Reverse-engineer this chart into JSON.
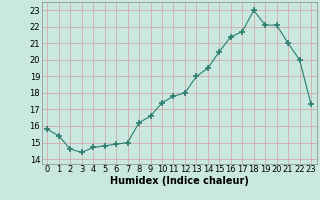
{
  "x": [
    0,
    1,
    2,
    3,
    4,
    5,
    6,
    7,
    8,
    9,
    10,
    11,
    12,
    13,
    14,
    15,
    16,
    17,
    18,
    19,
    20,
    21,
    22,
    23
  ],
  "y": [
    15.8,
    15.4,
    14.6,
    14.4,
    14.7,
    14.8,
    14.9,
    15.0,
    16.2,
    16.6,
    17.4,
    17.8,
    18.0,
    19.0,
    19.5,
    20.5,
    21.4,
    21.7,
    23.0,
    22.1,
    22.1,
    21.0,
    20.0,
    17.3
  ],
  "line_color": "#2d7d6f",
  "marker": "+",
  "marker_size": 4,
  "bg_color": "#c8e8e0",
  "grid_color": "#b0d0c8",
  "xlabel": "Humidex (Indice chaleur)",
  "ylabel_ticks": [
    14,
    15,
    16,
    17,
    18,
    19,
    20,
    21,
    22,
    23
  ],
  "xticks": [
    0,
    1,
    2,
    3,
    4,
    5,
    6,
    7,
    8,
    9,
    10,
    11,
    12,
    13,
    14,
    15,
    16,
    17,
    18,
    19,
    20,
    21,
    22,
    23
  ],
  "ylim": [
    13.7,
    23.5
  ],
  "xlim": [
    -0.5,
    23.5
  ],
  "tick_fontsize": 6,
  "xlabel_fontsize": 7
}
